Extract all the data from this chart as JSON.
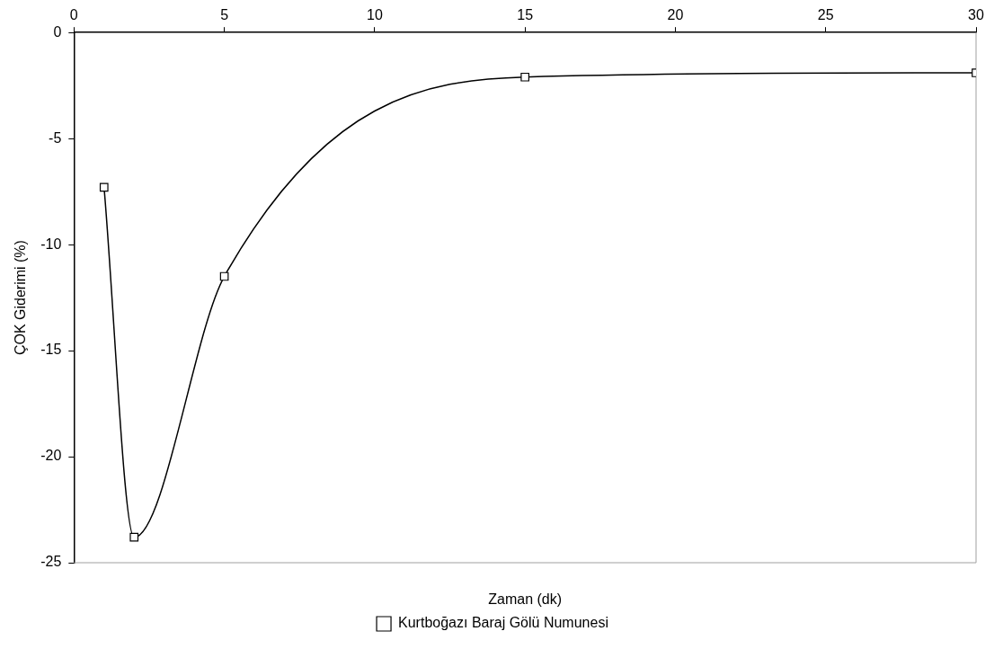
{
  "chart_data": {
    "type": "line",
    "xlabel": "Zaman (dk)",
    "ylabel": "ÇOK Giderimi (%)",
    "x": [
      1,
      2,
      5,
      15,
      30
    ],
    "series": [
      {
        "name": "Kurtboğazı Baraj Gölü Numunesi",
        "color": "#000000",
        "values": [
          -7.3,
          -23.8,
          -11.5,
          -2.1,
          -1.9
        ]
      }
    ],
    "xlim": [
      0,
      30
    ],
    "xticks": [
      0,
      5,
      10,
      15,
      20,
      25,
      30
    ],
    "ylim": [
      -25,
      0
    ],
    "yticks": [
      -25,
      -20,
      -15,
      -10,
      -5,
      0
    ],
    "grid": false,
    "legend": "bottom",
    "marker": "square",
    "line_style": "solid"
  }
}
